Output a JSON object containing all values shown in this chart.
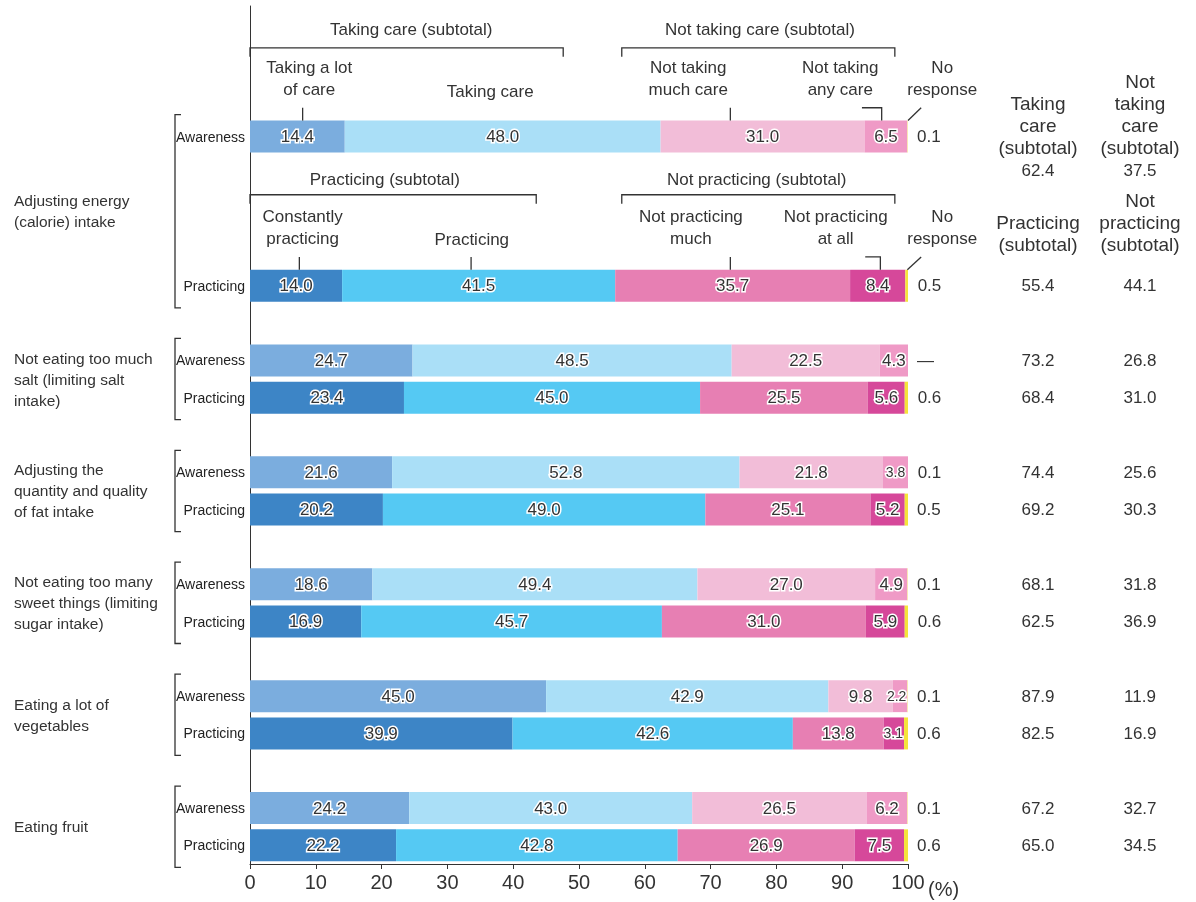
{
  "chart_data": {
    "type": "bar",
    "orientation": "horizontal",
    "stacked": true,
    "categories": [
      null,
      null,
      null,
      "Awareness",
      null,
      null,
      null,
      "Practicing",
      null,
      "Awareness",
      "Practicing",
      null,
      "Awareness",
      "Practicing",
      null,
      "Awareness",
      "Practicing",
      null,
      "Awareness",
      "Practicing",
      null,
      "Awareness",
      "Practicing"
    ],
    "xlim": [
      0,
      100
    ],
    "xticks": [
      0,
      10,
      20,
      30,
      40,
      50,
      60,
      70,
      80,
      90,
      100
    ],
    "xlabel": "(%)",
    "series": [
      {
        "values": [
          null,
          null,
          null,
          14.4,
          null,
          null,
          null,
          14.0,
          null,
          24.7,
          23.4,
          null,
          21.6,
          20.2,
          null,
          18.6,
          16.9,
          null,
          45.0,
          39.9,
          null,
          24.2,
          22.2
        ],
        "value_labels": [
          null,
          null,
          null,
          "14.4",
          null,
          null,
          null,
          "14.0",
          null,
          "24.7",
          "23.4",
          null,
          "21.6",
          "20.2",
          null,
          "18.6",
          "16.9",
          null,
          "45.0",
          "39.9",
          null,
          "24.2",
          "22.2"
        ],
        "colors": [
          null,
          null,
          null,
          "#7badde",
          null,
          null,
          null,
          "#3d85c6",
          null,
          "#7badde",
          "#3d85c6",
          null,
          "#7badde",
          "#3d85c6",
          null,
          "#7badde",
          "#3d85c6",
          null,
          "#7badde",
          "#3d85c6",
          null,
          "#7badde",
          "#3d85c6"
        ]
      },
      {
        "values": [
          null,
          null,
          null,
          48.0,
          null,
          null,
          null,
          41.5,
          null,
          48.5,
          45.0,
          null,
          52.8,
          49.0,
          null,
          49.4,
          45.7,
          null,
          42.9,
          42.6,
          null,
          43.0,
          42.8
        ],
        "value_labels": [
          null,
          null,
          null,
          "48.0",
          null,
          null,
          null,
          "41.5",
          null,
          "48.5",
          "45.0",
          null,
          "52.8",
          "49.0",
          null,
          "49.4",
          "45.7",
          null,
          "42.9",
          "42.6",
          null,
          "43.0",
          "42.8"
        ],
        "colors": [
          null,
          null,
          null,
          "#aadff7",
          null,
          null,
          null,
          "#55c9f3",
          null,
          "#aadff7",
          "#55c9f3",
          null,
          "#aadff7",
          "#55c9f3",
          null,
          "#aadff7",
          "#55c9f3",
          null,
          "#aadff7",
          "#55c9f3",
          null,
          "#aadff7",
          "#55c9f3"
        ]
      },
      {
        "values": [
          null,
          null,
          null,
          31.0,
          null,
          null,
          null,
          35.7,
          null,
          22.5,
          25.5,
          null,
          21.8,
          25.1,
          null,
          27.0,
          31.0,
          null,
          9.8,
          13.8,
          null,
          26.5,
          26.9
        ],
        "value_labels": [
          null,
          null,
          null,
          "31.0",
          null,
          null,
          null,
          "35.7",
          null,
          "22.5",
          "25.5",
          null,
          "21.8",
          "25.1",
          null,
          "27.0",
          "31.0",
          null,
          "9.8",
          "13.8",
          null,
          "26.5",
          "26.9"
        ],
        "colors": [
          null,
          null,
          null,
          "#f2bdd8",
          null,
          null,
          null,
          "#e77fb3",
          null,
          "#f2bdd8",
          "#e77fb3",
          null,
          "#f2bdd8",
          "#e77fb3",
          null,
          "#f2bdd8",
          "#e77fb3",
          null,
          "#f2bdd8",
          "#e77fb3",
          null,
          "#f2bdd8",
          "#e77fb3"
        ]
      },
      {
        "values": [
          null,
          null,
          null,
          6.5,
          null,
          null,
          null,
          8.4,
          null,
          4.3,
          5.6,
          null,
          3.8,
          5.2,
          null,
          4.9,
          5.9,
          null,
          2.2,
          3.1,
          null,
          6.2,
          7.5
        ],
        "value_labels": [
          null,
          null,
          null,
          "6.5",
          null,
          null,
          null,
          "8.4",
          null,
          "4.3",
          "5.6",
          null,
          "3.8",
          "5.2",
          null,
          "4.9",
          "5.9",
          null,
          "2.2",
          "3.1",
          null,
          "6.2",
          "7.5"
        ],
        "colors": [
          null,
          null,
          null,
          "#ef9ac6",
          null,
          null,
          null,
          "#d6489a",
          null,
          "#ef9ac6",
          "#d6489a",
          null,
          "#ef9ac6",
          "#d6489a",
          null,
          "#ef9ac6",
          "#d6489a",
          null,
          "#ef9ac6",
          "#d6489a",
          null,
          "#ef9ac6",
          "#d6489a"
        ]
      },
      {
        "values": [
          null,
          null,
          null,
          0.1,
          null,
          null,
          null,
          0.5,
          null,
          null,
          0.6,
          null,
          0.1,
          0.5,
          null,
          0.1,
          0.6,
          null,
          0.1,
          0.6,
          null,
          0.1,
          0.6
        ],
        "value_labels": [
          null,
          null,
          null,
          "0.1",
          null,
          null,
          null,
          "0.5",
          null,
          "—",
          "0.6",
          null,
          "0.1",
          "0.5",
          null,
          "0.1",
          "0.6",
          null,
          "0.1",
          "0.6",
          null,
          "0.1",
          "0.6"
        ],
        "colors": [
          null,
          null,
          null,
          "#f8ec9c",
          null,
          null,
          null,
          "#f5e43a",
          null,
          "#f8ec9c",
          "#f5e43a",
          null,
          "#f8ec9c",
          "#f5e43a",
          null,
          "#f8ec9c",
          "#f5e43a",
          null,
          "#f8ec9c",
          "#f5e43a",
          null,
          "#f8ec9c",
          "#f5e43a"
        ]
      }
    ],
    "annotations": [
      "Taking care (subtotal)",
      "Not taking care (subtotal)",
      "Taking a lot of care",
      "Taking care",
      "Not taking much care",
      "Not taking any care",
      "No response",
      "Practicing (subtotal)",
      "Not practicing (subtotal)",
      "Constantly practicing",
      "Practicing",
      "Not practicing much",
      "Not practicing at all",
      "No response",
      "Adjusting energy (calorie) intake",
      "Not eating too much salt (limiting salt intake)",
      "Adjusting the quantity and quality of fat intake",
      "Not eating too many sweet things (limiting sugar intake)",
      "Eating a lot of vegetables",
      "Eating fruit",
      "Taking care (subtotal)",
      "Not taking care (subtotal)",
      "Practicing (subtotal)",
      "Not practicing (subtotal)",
      "62.4",
      "37.5",
      "55.4",
      "44.1",
      "73.2",
      "26.8",
      "68.4",
      "31.0",
      "74.4",
      "25.6",
      "69.2",
      "30.3",
      "68.1",
      "31.8",
      "62.5",
      "36.9",
      "87.9",
      "11.9",
      "82.5",
      "16.9",
      "67.2",
      "32.7",
      "65.0",
      "34.5"
    ]
  }
}
